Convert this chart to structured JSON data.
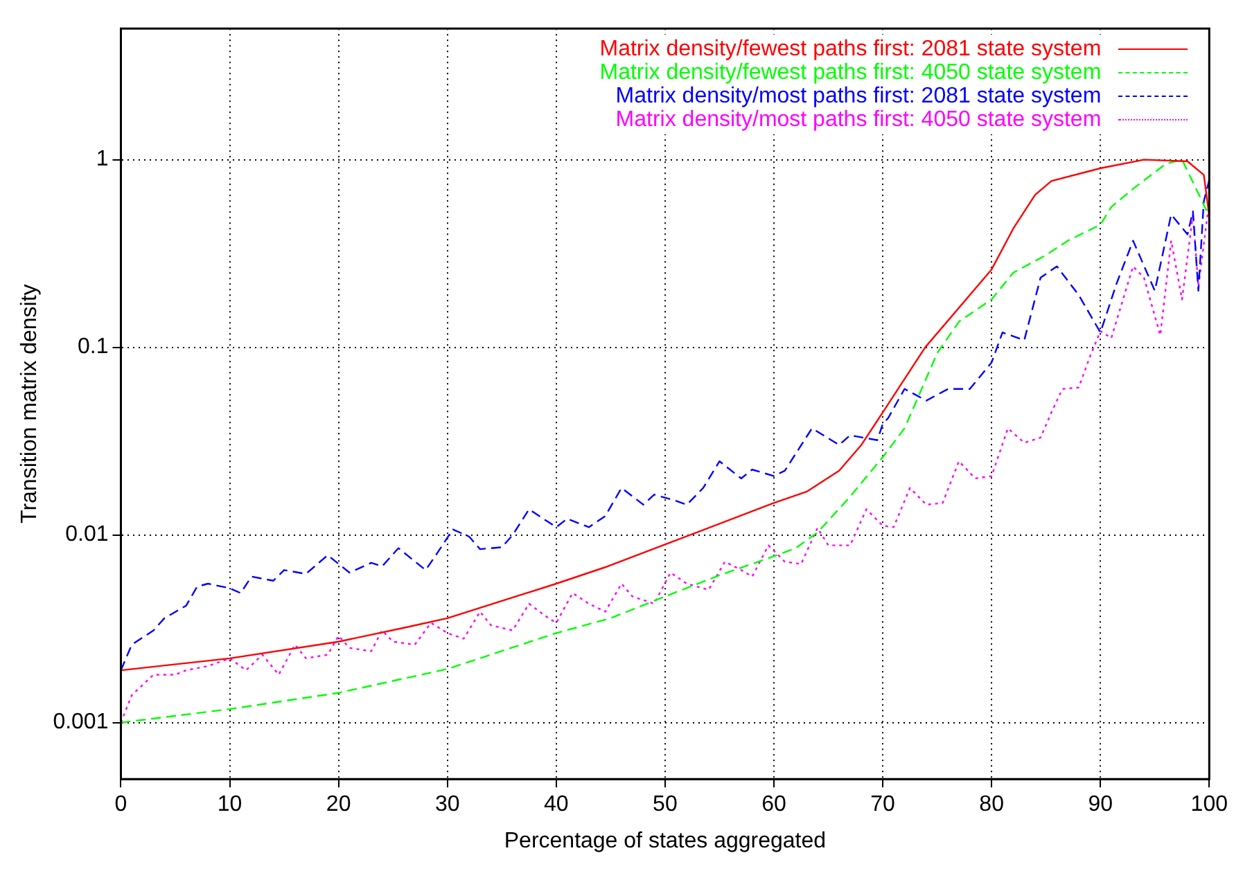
{
  "chart_data": {
    "type": "line",
    "xlabel": "Percentage of states aggregated",
    "ylabel": "Transition matrix density",
    "log": "y",
    "grid": true,
    "legend": "top right",
    "xlim": [
      0,
      100
    ],
    "xticks": [
      0,
      10,
      20,
      30,
      40,
      50,
      60,
      70,
      80,
      90,
      100
    ],
    "ylim": [
      0.0005,
      5
    ],
    "yticks": [
      0.001,
      0.01,
      0.1,
      1
    ],
    "series": [
      {
        "name": "Matrix density/fewest paths first: 2081 state system",
        "color": "#ff0000",
        "line_style": "solid",
        "x": [
          0,
          10,
          20,
          26,
          30,
          40,
          44.4,
          50,
          60,
          63,
          66,
          68,
          70,
          73.9,
          80,
          82,
          84,
          85.5,
          90,
          94,
          98,
          99.5,
          100
        ],
        "values": [
          0.0019,
          0.0022,
          0.0027,
          0.0032,
          0.0036,
          0.0055,
          0.0067,
          0.0089,
          0.0148,
          0.017,
          0.022,
          0.03,
          0.045,
          0.1,
          0.26,
          0.43,
          0.65,
          0.77,
          0.9,
          1.0,
          0.98,
          0.83,
          0.5
        ]
      },
      {
        "name": "Matrix density/fewest paths first: 4050 state system",
        "color": "#00ff00",
        "line_style": "dashed",
        "x": [
          0,
          10,
          20,
          30,
          40,
          45,
          50,
          55,
          60,
          62,
          64,
          67,
          70,
          72,
          75,
          77,
          80,
          82,
          85,
          87,
          90,
          91,
          93,
          96,
          97.5,
          100
        ],
        "values": [
          0.001,
          0.00118,
          0.00144,
          0.00193,
          0.003,
          0.0036,
          0.0047,
          0.0061,
          0.0077,
          0.0085,
          0.0103,
          0.016,
          0.026,
          0.037,
          0.093,
          0.137,
          0.18,
          0.25,
          0.31,
          0.37,
          0.45,
          0.56,
          0.7,
          0.95,
          1.0,
          0.5
        ]
      },
      {
        "name": "Matrix density/most paths first: 2081 state system",
        "color": "#0000ff",
        "line_style": "dashed",
        "x": [
          0,
          1,
          3,
          4,
          6,
          7,
          8,
          10,
          11,
          12,
          14,
          15,
          17,
          19,
          21,
          23,
          24,
          25.5,
          28,
          29,
          30.5,
          32,
          33,
          35,
          36,
          37.5,
          40,
          41,
          43,
          44.5,
          46,
          48,
          49,
          51,
          52,
          53.5,
          55,
          57,
          58,
          60,
          61,
          63.5,
          66,
          67,
          69.5,
          70,
          70.5,
          72,
          74,
          76,
          78,
          80,
          81,
          83,
          84.5,
          86,
          88,
          90,
          91.5,
          93,
          95,
          96.5,
          98,
          98.5,
          99,
          99.5,
          100
        ],
        "values": [
          0.0019,
          0.0026,
          0.0031,
          0.0036,
          0.0042,
          0.0053,
          0.0055,
          0.0052,
          0.0049,
          0.006,
          0.0057,
          0.0065,
          0.0062,
          0.0078,
          0.0063,
          0.0071,
          0.0068,
          0.0085,
          0.0065,
          0.0079,
          0.0107,
          0.0098,
          0.0084,
          0.0086,
          0.01,
          0.0137,
          0.011,
          0.0122,
          0.011,
          0.0126,
          0.0178,
          0.0145,
          0.0164,
          0.0152,
          0.0145,
          0.0178,
          0.0247,
          0.02,
          0.0223,
          0.0206,
          0.022,
          0.037,
          0.0302,
          0.034,
          0.032,
          0.039,
          0.042,
          0.06,
          0.052,
          0.06,
          0.06,
          0.083,
          0.12,
          0.109,
          0.235,
          0.27,
          0.19,
          0.12,
          0.22,
          0.37,
          0.2,
          0.51,
          0.4,
          0.53,
          0.2,
          0.6,
          0.78
        ]
      },
      {
        "name": "Matrix density/most paths first: 4050 state system",
        "color": "#ff00ff",
        "line_style": "dotted",
        "x": [
          0,
          1,
          3,
          5,
          6,
          8,
          10,
          11.5,
          13,
          14.5,
          16,
          17,
          19,
          20,
          21,
          23,
          24,
          25,
          27,
          28.5,
          30,
          31.5,
          33,
          34,
          36,
          37.5,
          39,
          40,
          41.5,
          43,
          44.5,
          46,
          47,
          49,
          50.5,
          52,
          54,
          55.5,
          57,
          58,
          59.5,
          61,
          62.5,
          64,
          65,
          67,
          68.5,
          70,
          71,
          72.5,
          74,
          75.5,
          77,
          78.5,
          80,
          81.5,
          83,
          84.5,
          85.5,
          86.5,
          88,
          89,
          90,
          91,
          93,
          94,
          95.5,
          96.5,
          97.5,
          98.5,
          99,
          100
        ],
        "values": [
          0.001,
          0.0014,
          0.0018,
          0.0018,
          0.0019,
          0.002,
          0.0022,
          0.0019,
          0.0023,
          0.0018,
          0.0026,
          0.0022,
          0.0023,
          0.0029,
          0.0025,
          0.0024,
          0.0031,
          0.0027,
          0.0026,
          0.0034,
          0.003,
          0.0028,
          0.0039,
          0.0033,
          0.0031,
          0.0043,
          0.0037,
          0.0034,
          0.0049,
          0.0043,
          0.0039,
          0.0055,
          0.0047,
          0.0043,
          0.0063,
          0.0055,
          0.0051,
          0.0072,
          0.0065,
          0.006,
          0.0088,
          0.0072,
          0.007,
          0.0109,
          0.0088,
          0.0088,
          0.0137,
          0.0112,
          0.011,
          0.0178,
          0.0145,
          0.0148,
          0.0247,
          0.02,
          0.0206,
          0.037,
          0.031,
          0.033,
          0.045,
          0.06,
          0.061,
          0.088,
          0.122,
          0.112,
          0.27,
          0.235,
          0.116,
          0.37,
          0.18,
          0.51,
          0.21,
          0.6
        ]
      }
    ]
  }
}
